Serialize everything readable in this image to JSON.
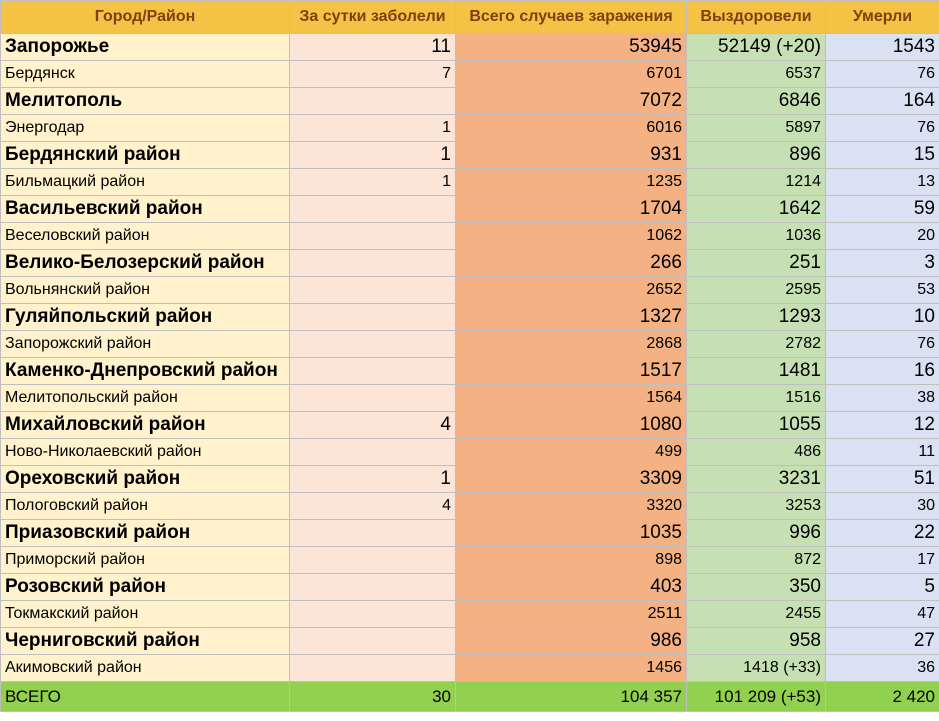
{
  "table": {
    "header": [
      "Город/Район",
      "За сутки заболели",
      "Всего случаев заражения",
      "Выздоровели",
      "Умерли"
    ],
    "rows": [
      [
        "Запорожье",
        "11",
        "53945",
        "52149 (+20)",
        "1543"
      ],
      [
        "Бердянск",
        "7",
        "6701",
        "6537",
        "76"
      ],
      [
        "Мелитополь",
        null,
        "7072",
        "6846",
        "164"
      ],
      [
        "Энергодар",
        "1",
        "6016",
        "5897",
        "76"
      ],
      [
        "Бердянский район",
        "1",
        "931",
        "896",
        "15"
      ],
      [
        "Бильмацкий район",
        "1",
        "1235",
        "1214",
        "13"
      ],
      [
        "Васильевский район",
        null,
        "1704",
        "1642",
        "59"
      ],
      [
        "Веселовский район",
        null,
        "1062",
        "1036",
        "20"
      ],
      [
        "Велико-Белозерский район",
        null,
        "266",
        "251",
        "3"
      ],
      [
        "Вольнянский район",
        null,
        "2652",
        "2595",
        "53"
      ],
      [
        "Гуляйпольский район",
        null,
        "1327",
        "1293",
        "10"
      ],
      [
        "Запорожский район",
        null,
        "2868",
        "2782",
        "76"
      ],
      [
        "Каменко-Днепровский район",
        null,
        "1517",
        "1481",
        "16"
      ],
      [
        "Мелитопольский район",
        null,
        "1564",
        "1516",
        "38"
      ],
      [
        "Михайловский район",
        "4",
        "1080",
        "1055",
        "12"
      ],
      [
        "Ново-Николаевский район",
        null,
        "499",
        "486",
        "11"
      ],
      [
        "Ореховский район",
        "1",
        "3309",
        "3231",
        "51"
      ],
      [
        "Пологовский район",
        "4",
        "3320",
        "3253",
        "30"
      ],
      [
        "Приазовский район",
        null,
        "1035",
        "996",
        "22"
      ],
      [
        "Приморский район",
        null,
        "898",
        "872",
        "17"
      ],
      [
        "Розовский район",
        null,
        "403",
        "350",
        "5"
      ],
      [
        "Токмакский район",
        null,
        "2511",
        "2455",
        "47"
      ],
      [
        "Черниговский район",
        null,
        "986",
        "958",
        "27"
      ],
      [
        "Акимовский район",
        null,
        "1456",
        "1418 (+33)",
        "36"
      ]
    ],
    "total": [
      "ВСЕГО",
      "30",
      "104 357",
      "101 209 (+53)",
      "2 420"
    ]
  }
}
